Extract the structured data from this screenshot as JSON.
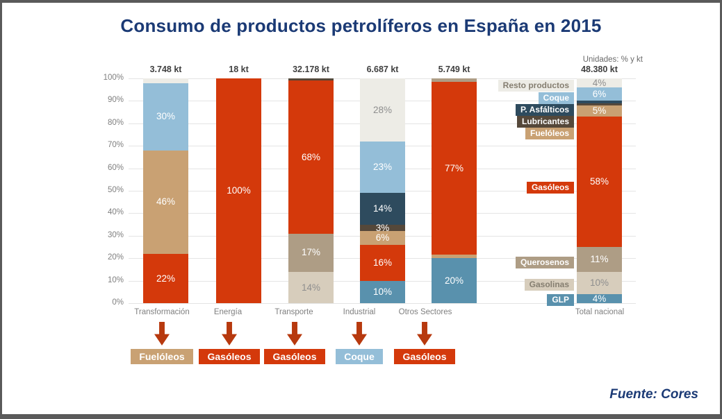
{
  "title": "Consumo de productos petrolíferos en España en 2015",
  "units_note": "Unidades: % y kt",
  "source": "Fuente: Cores",
  "colors": {
    "gasoleos": "#D4390B",
    "fueloleos": "#C9A173",
    "coque": "#94BED8",
    "glp": "#5991AD",
    "gasolinas": "#D7CDBC",
    "querosenos": "#AE9D85",
    "lubricantes": "#55483A",
    "p_asfalticos": "#2E4B5E",
    "resto": "#EDECE6",
    "title_blue": "#1B3A75",
    "arrow_red": "#B7390E",
    "dark_label_text": "#8E8E8E"
  },
  "chart_data": {
    "type": "bar",
    "stacked": true,
    "unit": "%",
    "title": "Consumo de productos petrolíferos en España en 2015",
    "xlabel": "",
    "ylabel": "",
    "ylim": [
      0,
      100
    ],
    "grid": true,
    "y_ticks": [
      "100%",
      "90%",
      "80%",
      "70%",
      "60%",
      "50%",
      "40%",
      "30%",
      "20%",
      "10%",
      "0%"
    ],
    "categories": [
      "Transformación",
      "Energía",
      "Transporte",
      "Industrial",
      "Otros Sectores",
      "Total nacional"
    ],
    "totals_kt": [
      "3.748 kt",
      "18 kt",
      "32.178 kt",
      "6.687 kt",
      "5.749 kt",
      "48.380 kt"
    ],
    "bars": [
      {
        "category": "Transformación",
        "total": "3.748 kt",
        "segments": [
          {
            "product": "Gasóleos",
            "color": "gasoleos",
            "value": 22,
            "label": "22%"
          },
          {
            "product": "Fuelóleos",
            "color": "fueloleos",
            "value": 46,
            "label": "46%"
          },
          {
            "product": "Coque",
            "color": "coque",
            "value": 30,
            "label": "30%"
          },
          {
            "product": "Resto productos",
            "color": "resto",
            "value": 2,
            "label": ""
          }
        ]
      },
      {
        "category": "Energía",
        "total": "18 kt",
        "segments": [
          {
            "product": "Gasóleos",
            "color": "gasoleos",
            "value": 100,
            "label": "100%"
          }
        ]
      },
      {
        "category": "Transporte",
        "total": "32.178 kt",
        "segments": [
          {
            "product": "Gasolinas",
            "color": "gasolinas",
            "value": 14,
            "label": "14%"
          },
          {
            "product": "Querosenos",
            "color": "querosenos",
            "value": 17,
            "label": "17%"
          },
          {
            "product": "Gasóleos",
            "color": "gasoleos",
            "value": 68,
            "label": "68%"
          },
          {
            "product": "Lubricantes",
            "color": "lubricantes",
            "value": 1,
            "label": ""
          }
        ]
      },
      {
        "category": "Industrial",
        "total": "6.687 kt",
        "segments": [
          {
            "product": "GLP",
            "color": "glp",
            "value": 10,
            "label": "10%"
          },
          {
            "product": "Gasóleos",
            "color": "gasoleos",
            "value": 16,
            "label": "16%"
          },
          {
            "product": "Fuelóleos",
            "color": "fueloleos",
            "value": 6,
            "label": "6%"
          },
          {
            "product": "Lubricantes",
            "color": "lubricantes",
            "value": 3,
            "label": "3%"
          },
          {
            "product": "P. Asfálticos",
            "color": "p_asfalticos",
            "value": 14,
            "label": "14%"
          },
          {
            "product": "Coque",
            "color": "coque",
            "value": 23,
            "label": "23%"
          },
          {
            "product": "Resto productos",
            "color": "resto",
            "value": 28,
            "label": "28%"
          }
        ]
      },
      {
        "category": "Otros Sectores",
        "total": "5.749 kt",
        "segments": [
          {
            "product": "GLP",
            "color": "glp",
            "value": 20,
            "label": "20%"
          },
          {
            "product": "Fuelóleos",
            "color": "fueloleos",
            "value": 1.5,
            "label": ""
          },
          {
            "product": "Gasóleos",
            "color": "gasoleos",
            "value": 77,
            "label": "77%"
          },
          {
            "product": "Querosenos",
            "color": "querosenos",
            "value": 1.5,
            "label": ""
          }
        ]
      },
      {
        "category": "Total nacional",
        "total": "48.380 kt",
        "segments": [
          {
            "product": "GLP",
            "color": "glp",
            "value": 4,
            "label": "4%"
          },
          {
            "product": "Gasolinas",
            "color": "gasolinas",
            "value": 10,
            "label": "10%"
          },
          {
            "product": "Querosenos",
            "color": "querosenos",
            "value": 11,
            "label": "11%"
          },
          {
            "product": "Gasóleos",
            "color": "gasoleos",
            "value": 58,
            "label": "58%"
          },
          {
            "product": "Fuelóleos",
            "color": "fueloleos",
            "value": 5,
            "label": "5%"
          },
          {
            "product": "Lubricantes",
            "color": "lubricantes",
            "value": 1,
            "label": ""
          },
          {
            "product": "P. Asfálticos",
            "color": "p_asfalticos",
            "value": 1,
            "label": ""
          },
          {
            "product": "Coque",
            "color": "coque",
            "value": 6,
            "label": "6%"
          },
          {
            "product": "Resto productos",
            "color": "resto",
            "value": 4,
            "label": "4%"
          }
        ]
      }
    ],
    "legend": [
      {
        "label": "Resto productos",
        "color": "resto",
        "dark_text": true
      },
      {
        "label": "Coque",
        "color": "coque",
        "dark_text": false
      },
      {
        "label": "P. Asfálticos",
        "color": "p_asfalticos",
        "dark_text": false
      },
      {
        "label": "Lubricantes",
        "color": "lubricantes",
        "dark_text": false
      },
      {
        "label": "Fuelóleos",
        "color": "fueloleos",
        "dark_text": false
      },
      {
        "label": "Gasóleos",
        "color": "gasoleos",
        "dark_text": false
      },
      {
        "label": "Querosenos",
        "color": "querosenos",
        "dark_text": false
      },
      {
        "label": "Gasolinas",
        "color": "gasolinas",
        "dark_text": true
      },
      {
        "label": "GLP",
        "color": "glp",
        "dark_text": false
      }
    ],
    "dominant_products": [
      {
        "category": "Transformación",
        "label": "Fuelóleos",
        "color": "fueloleos"
      },
      {
        "category": "Energía",
        "label": "Gasóleos",
        "color": "gasoleos"
      },
      {
        "category": "Transporte",
        "label": "Gasóleos",
        "color": "gasoleos"
      },
      {
        "category": "Industrial",
        "label": "Coque",
        "color": "coque"
      },
      {
        "category": "Otros Sectores",
        "label": "Gasóleos",
        "color": "gasoleos"
      }
    ]
  }
}
